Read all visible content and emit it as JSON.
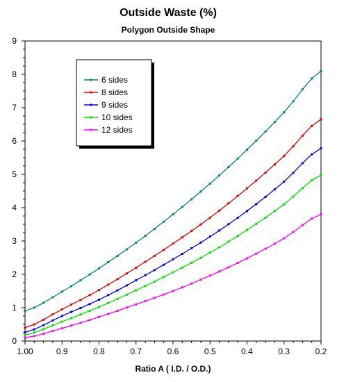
{
  "chart_data": {
    "type": "line",
    "title": "Outside Waste (%)",
    "subtitle": "Polygon Outside Shape",
    "xlabel": "Ratio A ( I.D. / O.D.)",
    "ylabel": "",
    "xlim": [
      1.0,
      0.2
    ],
    "ylim": [
      0,
      9
    ],
    "x_reversed": true,
    "grid": false,
    "legend_position": "top-left",
    "x_ticks": [
      "1.00",
      "0.9",
      "0.8",
      "0.7",
      "0.6",
      "0.5",
      "0.4",
      "0.3",
      "0.2"
    ],
    "x_tick_values": [
      1.0,
      0.9,
      0.8,
      0.7,
      0.6,
      0.5,
      0.4,
      0.3,
      0.2
    ],
    "y_ticks": [
      "0",
      "1",
      "2",
      "3",
      "4",
      "5",
      "6",
      "7",
      "8",
      "9"
    ],
    "y_tick_values": [
      0,
      1,
      2,
      3,
      4,
      5,
      6,
      7,
      8,
      9
    ],
    "x": [
      1.0,
      0.9,
      0.8,
      0.7,
      0.6,
      0.5,
      0.4,
      0.3,
      0.2
    ],
    "series": [
      {
        "name": "6 sides",
        "color": "#008080",
        "values": [
          0.9,
          1.48,
          2.18,
          2.95,
          3.8,
          4.72,
          5.74,
          6.86,
          8.1
        ]
      },
      {
        "name": "8 sides",
        "color": "#e00000",
        "values": [
          0.4,
          0.95,
          1.53,
          2.2,
          2.92,
          3.7,
          4.58,
          5.55,
          6.65
        ]
      },
      {
        "name": "9 sides",
        "color": "#0000e0",
        "values": [
          0.26,
          0.75,
          1.24,
          1.82,
          2.45,
          3.13,
          3.9,
          4.78,
          5.78
        ]
      },
      {
        "name": "10 sides",
        "color": "#00e000",
        "values": [
          0.18,
          0.58,
          1.02,
          1.52,
          2.06,
          2.65,
          3.33,
          4.1,
          4.98
        ]
      },
      {
        "name": "12 sides",
        "color": "#ff00ff",
        "values": [
          0.1,
          0.38,
          0.72,
          1.1,
          1.5,
          1.96,
          2.48,
          3.08,
          3.8
        ]
      }
    ]
  }
}
